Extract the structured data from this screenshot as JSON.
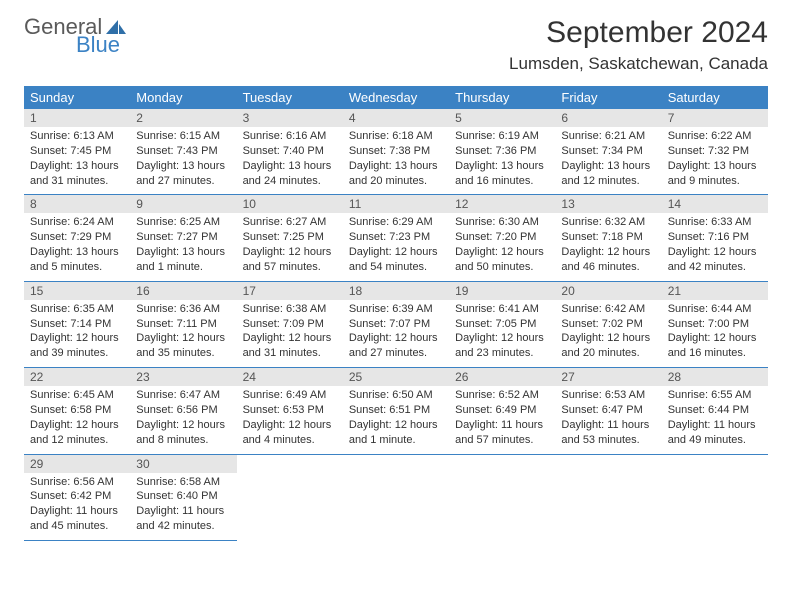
{
  "logo": {
    "text1": "General",
    "text2": "Blue"
  },
  "title": "September 2024",
  "location": "Lumsden, Saskatchewan, Canada",
  "colors": {
    "header_bg": "#3b82c4",
    "header_fg": "#ffffff",
    "daynum_bg": "#e6e6e6",
    "border": "#3b82c4",
    "logo_gray": "#5a5a5a",
    "logo_blue": "#3b82c4"
  },
  "dayNames": [
    "Sunday",
    "Monday",
    "Tuesday",
    "Wednesday",
    "Thursday",
    "Friday",
    "Saturday"
  ],
  "weeks": [
    [
      {
        "n": "1",
        "sr": "Sunrise: 6:13 AM",
        "ss": "Sunset: 7:45 PM",
        "dl": "Daylight: 13 hours and 31 minutes."
      },
      {
        "n": "2",
        "sr": "Sunrise: 6:15 AM",
        "ss": "Sunset: 7:43 PM",
        "dl": "Daylight: 13 hours and 27 minutes."
      },
      {
        "n": "3",
        "sr": "Sunrise: 6:16 AM",
        "ss": "Sunset: 7:40 PM",
        "dl": "Daylight: 13 hours and 24 minutes."
      },
      {
        "n": "4",
        "sr": "Sunrise: 6:18 AM",
        "ss": "Sunset: 7:38 PM",
        "dl": "Daylight: 13 hours and 20 minutes."
      },
      {
        "n": "5",
        "sr": "Sunrise: 6:19 AM",
        "ss": "Sunset: 7:36 PM",
        "dl": "Daylight: 13 hours and 16 minutes."
      },
      {
        "n": "6",
        "sr": "Sunrise: 6:21 AM",
        "ss": "Sunset: 7:34 PM",
        "dl": "Daylight: 13 hours and 12 minutes."
      },
      {
        "n": "7",
        "sr": "Sunrise: 6:22 AM",
        "ss": "Sunset: 7:32 PM",
        "dl": "Daylight: 13 hours and 9 minutes."
      }
    ],
    [
      {
        "n": "8",
        "sr": "Sunrise: 6:24 AM",
        "ss": "Sunset: 7:29 PM",
        "dl": "Daylight: 13 hours and 5 minutes."
      },
      {
        "n": "9",
        "sr": "Sunrise: 6:25 AM",
        "ss": "Sunset: 7:27 PM",
        "dl": "Daylight: 13 hours and 1 minute."
      },
      {
        "n": "10",
        "sr": "Sunrise: 6:27 AM",
        "ss": "Sunset: 7:25 PM",
        "dl": "Daylight: 12 hours and 57 minutes."
      },
      {
        "n": "11",
        "sr": "Sunrise: 6:29 AM",
        "ss": "Sunset: 7:23 PM",
        "dl": "Daylight: 12 hours and 54 minutes."
      },
      {
        "n": "12",
        "sr": "Sunrise: 6:30 AM",
        "ss": "Sunset: 7:20 PM",
        "dl": "Daylight: 12 hours and 50 minutes."
      },
      {
        "n": "13",
        "sr": "Sunrise: 6:32 AM",
        "ss": "Sunset: 7:18 PM",
        "dl": "Daylight: 12 hours and 46 minutes."
      },
      {
        "n": "14",
        "sr": "Sunrise: 6:33 AM",
        "ss": "Sunset: 7:16 PM",
        "dl": "Daylight: 12 hours and 42 minutes."
      }
    ],
    [
      {
        "n": "15",
        "sr": "Sunrise: 6:35 AM",
        "ss": "Sunset: 7:14 PM",
        "dl": "Daylight: 12 hours and 39 minutes."
      },
      {
        "n": "16",
        "sr": "Sunrise: 6:36 AM",
        "ss": "Sunset: 7:11 PM",
        "dl": "Daylight: 12 hours and 35 minutes."
      },
      {
        "n": "17",
        "sr": "Sunrise: 6:38 AM",
        "ss": "Sunset: 7:09 PM",
        "dl": "Daylight: 12 hours and 31 minutes."
      },
      {
        "n": "18",
        "sr": "Sunrise: 6:39 AM",
        "ss": "Sunset: 7:07 PM",
        "dl": "Daylight: 12 hours and 27 minutes."
      },
      {
        "n": "19",
        "sr": "Sunrise: 6:41 AM",
        "ss": "Sunset: 7:05 PM",
        "dl": "Daylight: 12 hours and 23 minutes."
      },
      {
        "n": "20",
        "sr": "Sunrise: 6:42 AM",
        "ss": "Sunset: 7:02 PM",
        "dl": "Daylight: 12 hours and 20 minutes."
      },
      {
        "n": "21",
        "sr": "Sunrise: 6:44 AM",
        "ss": "Sunset: 7:00 PM",
        "dl": "Daylight: 12 hours and 16 minutes."
      }
    ],
    [
      {
        "n": "22",
        "sr": "Sunrise: 6:45 AM",
        "ss": "Sunset: 6:58 PM",
        "dl": "Daylight: 12 hours and 12 minutes."
      },
      {
        "n": "23",
        "sr": "Sunrise: 6:47 AM",
        "ss": "Sunset: 6:56 PM",
        "dl": "Daylight: 12 hours and 8 minutes."
      },
      {
        "n": "24",
        "sr": "Sunrise: 6:49 AM",
        "ss": "Sunset: 6:53 PM",
        "dl": "Daylight: 12 hours and 4 minutes."
      },
      {
        "n": "25",
        "sr": "Sunrise: 6:50 AM",
        "ss": "Sunset: 6:51 PM",
        "dl": "Daylight: 12 hours and 1 minute."
      },
      {
        "n": "26",
        "sr": "Sunrise: 6:52 AM",
        "ss": "Sunset: 6:49 PM",
        "dl": "Daylight: 11 hours and 57 minutes."
      },
      {
        "n": "27",
        "sr": "Sunrise: 6:53 AM",
        "ss": "Sunset: 6:47 PM",
        "dl": "Daylight: 11 hours and 53 minutes."
      },
      {
        "n": "28",
        "sr": "Sunrise: 6:55 AM",
        "ss": "Sunset: 6:44 PM",
        "dl": "Daylight: 11 hours and 49 minutes."
      }
    ],
    [
      {
        "n": "29",
        "sr": "Sunrise: 6:56 AM",
        "ss": "Sunset: 6:42 PM",
        "dl": "Daylight: 11 hours and 45 minutes."
      },
      {
        "n": "30",
        "sr": "Sunrise: 6:58 AM",
        "ss": "Sunset: 6:40 PM",
        "dl": "Daylight: 11 hours and 42 minutes."
      },
      null,
      null,
      null,
      null,
      null
    ]
  ]
}
